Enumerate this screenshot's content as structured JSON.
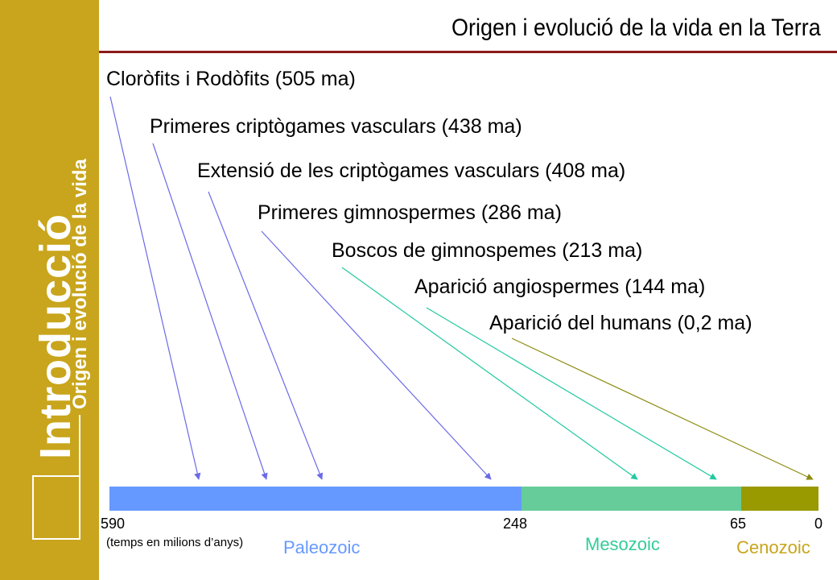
{
  "sidebar": {
    "title": "Introducció",
    "subtitle": "Origen i evolució de la vida",
    "color": "#c8a51c"
  },
  "header": {
    "title": "Origen i evolució de la vida en la Terra"
  },
  "events": [
    {
      "label": "Cloròfits i Rodòfits (505 ma)",
      "ma": 505,
      "arrow_color": "#6a6ae8"
    },
    {
      "label": "Primeres criptògames vasculars (438 ma)",
      "ma": 438,
      "arrow_color": "#6a6ae8"
    },
    {
      "label": "Extensió de les criptògames vasculars (408 ma)",
      "ma": 408,
      "arrow_color": "#6a6ae8"
    },
    {
      "label": "Primeres gimnospermes (286 ma)",
      "ma": 286,
      "arrow_color": "#6a6ae8"
    },
    {
      "label": "Boscos de gimnospemes (213 ma)",
      "ma": 213,
      "arrow_color": "#22c9a0"
    },
    {
      "label": "Aparició angiospermes (144 ma)",
      "ma": 144,
      "arrow_color": "#22c9a0"
    },
    {
      "label": "Aparició del humans (0,2 ma)",
      "ma": 0.2,
      "arrow_color": "#8b8b10"
    }
  ],
  "timeline": {
    "ticks": [
      "590",
      "248",
      "65",
      "0"
    ],
    "unit_note": "(temps en milions d’anys)",
    "eras": [
      {
        "name": "Paleozoic",
        "from": 590,
        "to": 248,
        "color": "#6699ff",
        "text_color": "#6699ff"
      },
      {
        "name": "Mesozoic",
        "from": 248,
        "to": 65,
        "color": "#66cc99",
        "text_color": "#33cc99"
      },
      {
        "name": "Cenozoic",
        "from": 65,
        "to": 0,
        "color": "#999900",
        "text_color": "#c8a51c"
      }
    ]
  }
}
